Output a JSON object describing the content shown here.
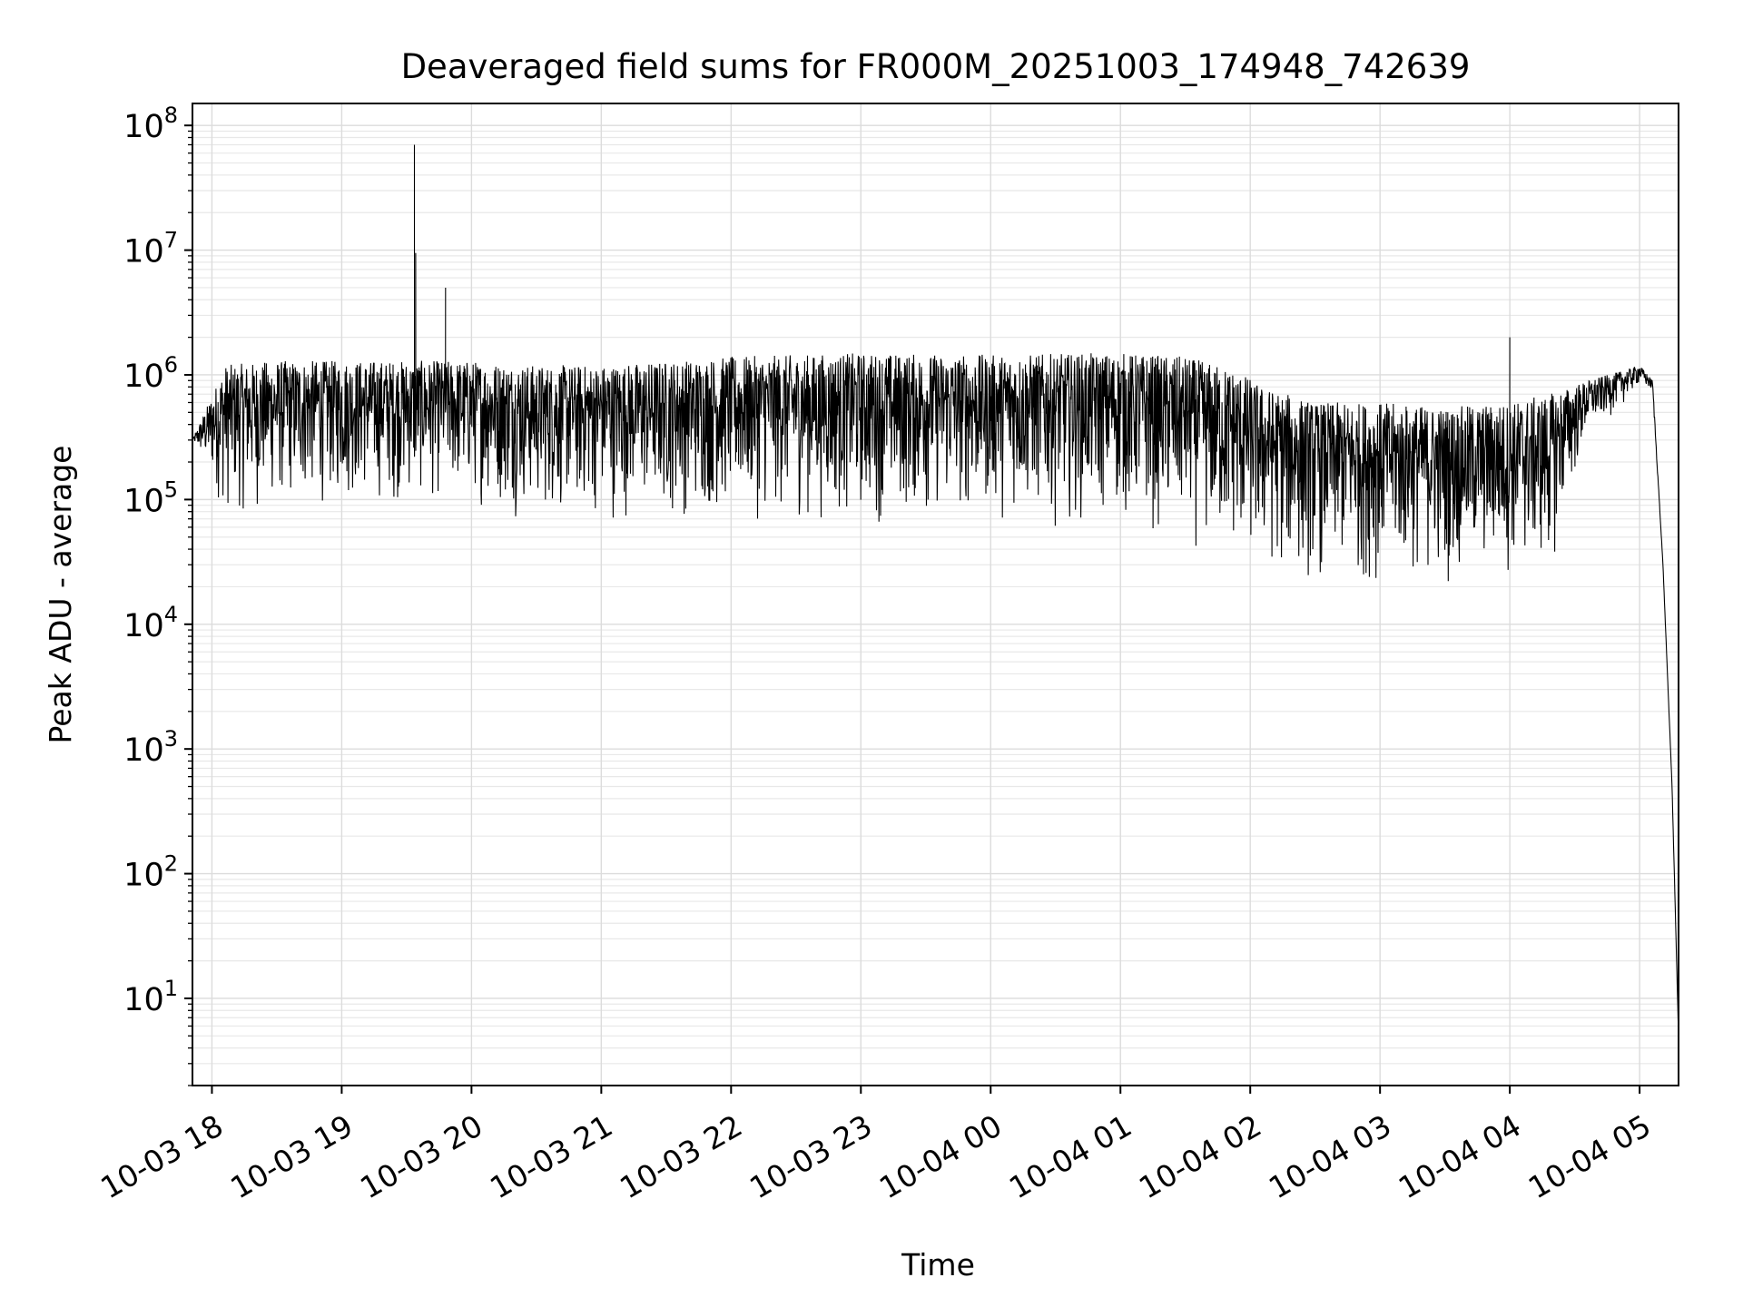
{
  "chart_data": {
    "type": "line",
    "title": "Deaveraged field sums for FR000M_20251003_174948_742639",
    "xlabel": "Time",
    "ylabel": "Peak ADU - average",
    "yscale": "log",
    "ylim": [
      2,
      150000000
    ],
    "xlim_hours_from_10_03_18": [
      -0.15,
      11.3
    ],
    "grid": true,
    "line_color": "#000000",
    "x_ticks": [
      {
        "label": "10-03 18",
        "hours": 0
      },
      {
        "label": "10-03 19",
        "hours": 1
      },
      {
        "label": "10-03 20",
        "hours": 2
      },
      {
        "label": "10-03 21",
        "hours": 3
      },
      {
        "label": "10-03 22",
        "hours": 4
      },
      {
        "label": "10-03 23",
        "hours": 5
      },
      {
        "label": "10-04 00",
        "hours": 6
      },
      {
        "label": "10-04 01",
        "hours": 7
      },
      {
        "label": "10-04 02",
        "hours": 8
      },
      {
        "label": "10-04 03",
        "hours": 9
      },
      {
        "label": "10-04 04",
        "hours": 10
      },
      {
        "label": "10-04 05",
        "hours": 11
      }
    ],
    "y_ticks": [
      {
        "base": "10",
        "exp": "1",
        "value": 10
      },
      {
        "base": "10",
        "exp": "2",
        "value": 100
      },
      {
        "base": "10",
        "exp": "3",
        "value": 1000
      },
      {
        "base": "10",
        "exp": "4",
        "value": 10000
      },
      {
        "base": "10",
        "exp": "5",
        "value": 100000
      },
      {
        "base": "10",
        "exp": "6",
        "value": 1000000
      },
      {
        "base": "10",
        "exp": "7",
        "value": 10000000
      },
      {
        "base": "10",
        "exp": "8",
        "value": 100000000
      }
    ],
    "series": [
      {
        "name": "Peak ADU - average",
        "envelope_hours": [
          -0.15,
          0.1,
          0.5,
          1.0,
          1.5,
          2.0,
          2.5,
          3.0,
          4.0,
          5.0,
          6.0,
          7.0,
          7.5,
          7.9,
          8.1,
          8.5,
          9.0,
          9.5,
          10.0,
          10.3,
          10.6,
          10.9,
          11.0,
          11.1,
          11.18,
          11.25,
          11.3
        ],
        "envelope_upper": [
          300000,
          1200000,
          1300000,
          1300000,
          1300000,
          1300000,
          1200000,
          1200000,
          1400000,
          1500000,
          1450000,
          1500000,
          1400000,
          1100000,
          800000,
          600000,
          600000,
          550000,
          600000,
          700000,
          900000,
          1100000,
          1200000,
          900000,
          30000,
          500,
          5
        ],
        "envelope_lower": [
          300000,
          60000,
          70000,
          80000,
          80000,
          80000,
          60000,
          60000,
          60000,
          55000,
          60000,
          55000,
          35000,
          25000,
          20000,
          18000,
          18000,
          18000,
          20000,
          20000,
          300000,
          600000,
          800000,
          700000,
          30000,
          500,
          5
        ],
        "spikes": [
          {
            "hours": 1.56,
            "value": 70000000
          },
          {
            "hours": 1.57,
            "value": 9500000
          },
          {
            "hours": 1.8,
            "value": 5000000
          },
          {
            "hours": 10.0,
            "value": 2000000
          }
        ]
      }
    ]
  }
}
